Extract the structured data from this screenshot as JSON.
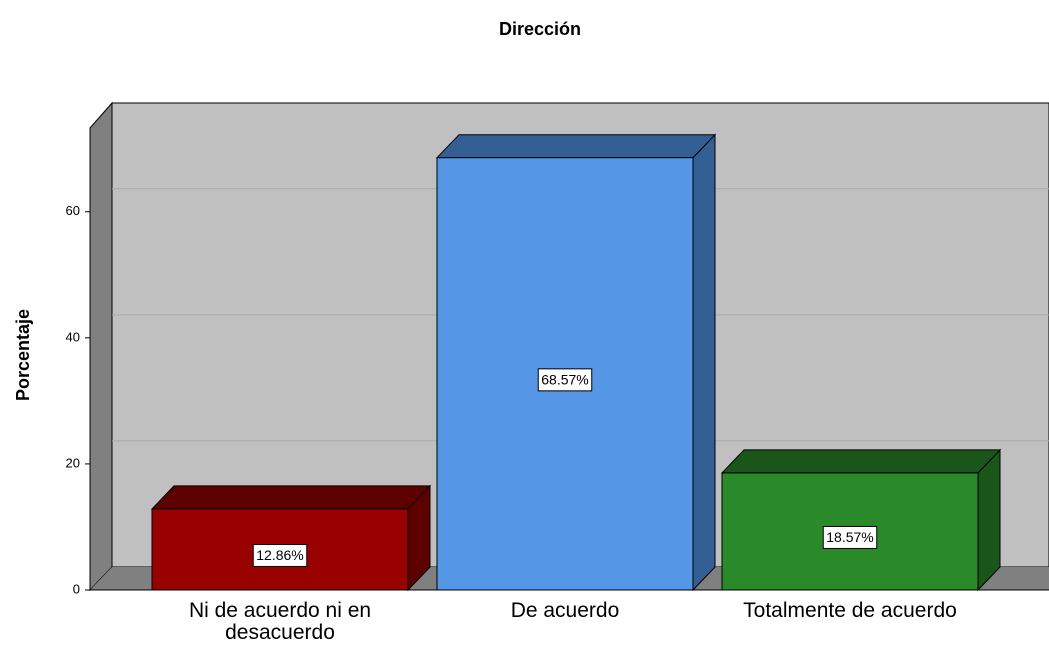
{
  "chart_data": {
    "type": "bar3d",
    "title": "Dirección",
    "y_label": "Porcentaje",
    "categories": [
      "Ni de acuerdo ni en desacuerdo",
      "De acuerdo",
      "Totalmente de acuerdo"
    ],
    "values": [
      12.86,
      68.57,
      18.57
    ],
    "value_labels": [
      "12.86%",
      "68.57%",
      "18.57%"
    ],
    "colors": [
      "#990000",
      "#5596e6",
      "#2a8a2a"
    ],
    "side_colors": [
      "#5c0000",
      "#335f94",
      "#1a561a"
    ],
    "ylim": [
      0,
      73.6
    ],
    "yticks": [
      0,
      20,
      40,
      60
    ],
    "grid": true
  }
}
